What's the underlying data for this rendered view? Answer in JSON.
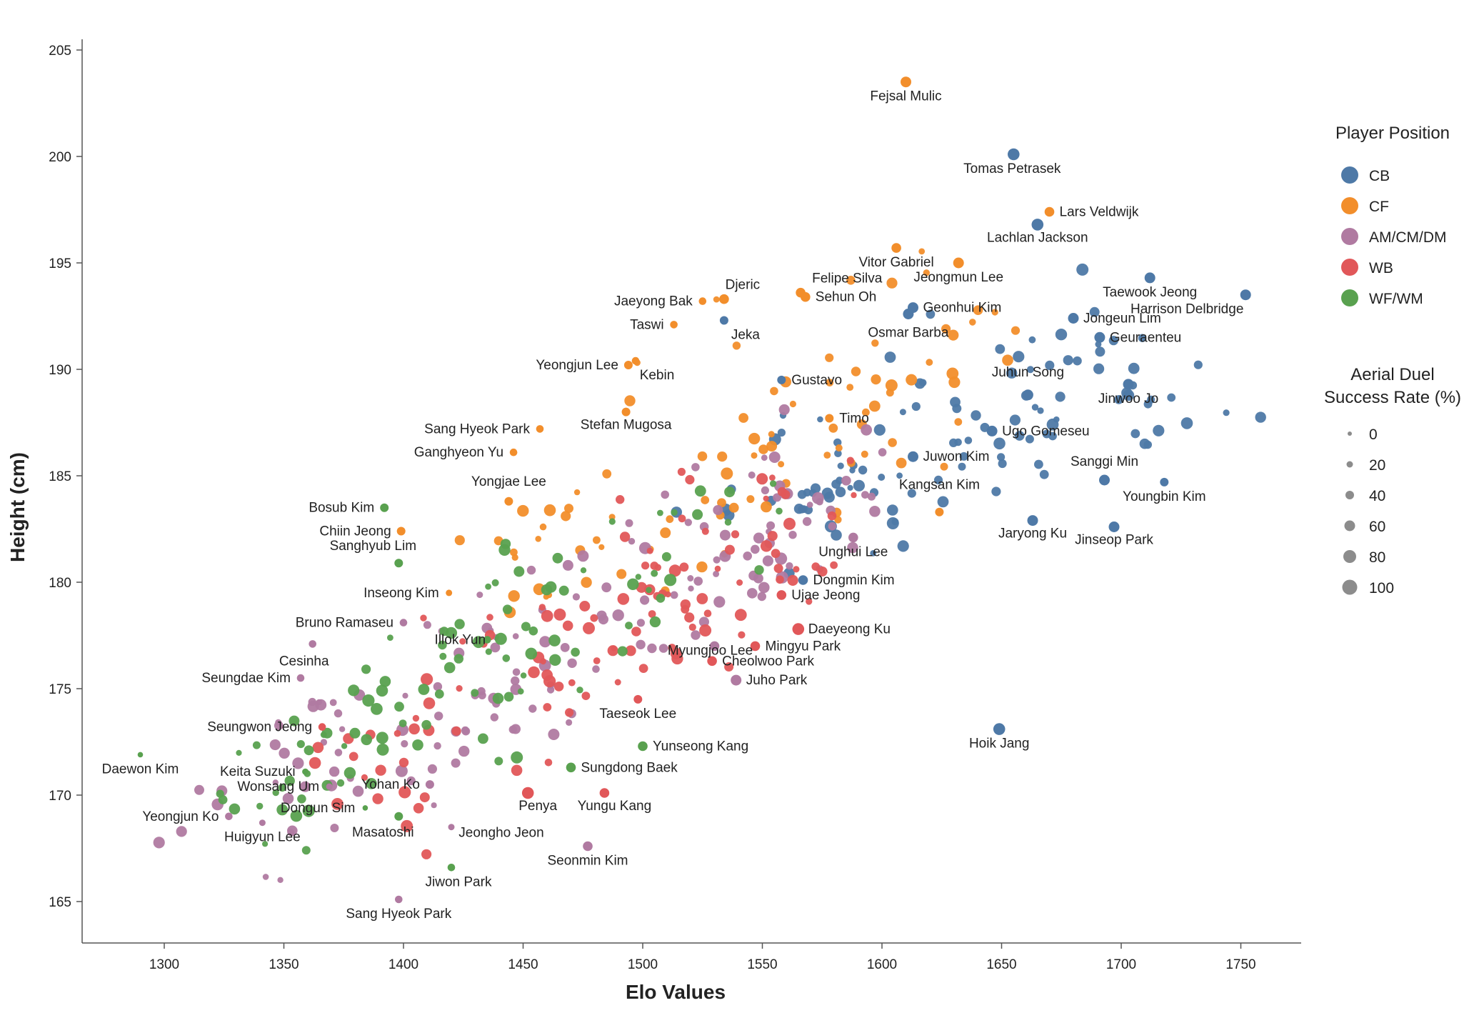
{
  "chart_data": {
    "type": "scatter",
    "xlabel": "Elo Values",
    "ylabel": "Height (cm)",
    "xlim": [
      1265,
      1775
    ],
    "ylim": [
      163,
      207
    ],
    "xticks": [
      1300,
      1350,
      1400,
      1450,
      1500,
      1550,
      1600,
      1650,
      1700,
      1750
    ],
    "yticks": [
      165,
      170,
      175,
      180,
      185,
      190,
      195,
      200,
      205
    ],
    "grid": false,
    "legend_position": "right",
    "position_legend": {
      "title": "Player Position",
      "entries": [
        {
          "name": "CB",
          "color": "#4e79a7"
        },
        {
          "name": "CF",
          "color": "#f28e2b"
        },
        {
          "name": "AM/CM/DM",
          "color": "#b07aa1"
        },
        {
          "name": "WB",
          "color": "#e15759"
        },
        {
          "name": "WF/WM",
          "color": "#59a14f"
        }
      ]
    },
    "size_legend": {
      "title_line1": "Aerial Duel",
      "title_line2": "Success Rate (%)",
      "values": [
        0,
        20,
        40,
        60,
        80,
        100
      ]
    },
    "labeled_points": [
      {
        "name": "Fejsal Mulic",
        "position": "CF",
        "elo": 1610,
        "height": 203.5,
        "aerial": 60
      },
      {
        "name": "Tomas Petrasek",
        "position": "CB",
        "elo": 1655,
        "height": 200.1,
        "aerial": 70
      },
      {
        "name": "Lars Veldwijk",
        "position": "CF",
        "elo": 1670,
        "height": 197.4,
        "aerial": 50
      },
      {
        "name": "Lachlan Jackson",
        "position": "CB",
        "elo": 1665,
        "height": 196.8,
        "aerial": 70
      },
      {
        "name": "Vitor Gabriel",
        "position": "CF",
        "elo": 1606,
        "height": 195.7,
        "aerial": 50
      },
      {
        "name": "Jeongmun Lee",
        "position": "CF",
        "elo": 1632,
        "height": 195.0,
        "aerial": 60
      },
      {
        "name": "Taewook Jeong",
        "position": "CB",
        "elo": 1712,
        "height": 194.3,
        "aerial": 60
      },
      {
        "name": "Harrison Delbridge",
        "position": "CB",
        "elo": 1752,
        "height": 193.5,
        "aerial": 60
      },
      {
        "name": "Felipe Silva",
        "position": "CF",
        "elo": 1566,
        "height": 193.6,
        "aerial": 50
      },
      {
        "name": "Djeric",
        "position": "CF",
        "elo": 1534,
        "height": 193.3,
        "aerial": 50
      },
      {
        "name": "Sehun Oh",
        "position": "CF",
        "elo": 1568,
        "height": 193.4,
        "aerial": 50
      },
      {
        "name": "Jaeyong Bak",
        "position": "CF",
        "elo": 1525,
        "height": 193.2,
        "aerial": 30
      },
      {
        "name": "Geonhui Kim",
        "position": "CB",
        "elo": 1613,
        "height": 192.9,
        "aerial": 60
      },
      {
        "name": "Jongeun Lim",
        "position": "CB",
        "elo": 1680,
        "height": 192.4,
        "aerial": 60
      },
      {
        "name": "Taswi",
        "position": "CF",
        "elo": 1513,
        "height": 192.1,
        "aerial": 30
      },
      {
        "name": "Jeka",
        "position": "CB",
        "elo": 1534,
        "height": 192.3,
        "aerial": 40
      },
      {
        "name": "Osmar Barba",
        "position": "CB",
        "elo": 1611,
        "height": 192.6,
        "aerial": 60
      },
      {
        "name": "Geuraenteu",
        "position": "CB",
        "elo": 1691,
        "height": 191.5,
        "aerial": 60
      },
      {
        "name": "Yeongjun Lee",
        "position": "CF",
        "elo": 1494,
        "height": 190.2,
        "aerial": 40
      },
      {
        "name": "Kebin",
        "position": "CF",
        "elo": 1497,
        "height": 190.4,
        "aerial": 30
      },
      {
        "name": "Gustavo",
        "position": "CB",
        "elo": 1558,
        "height": 189.5,
        "aerial": 40
      },
      {
        "name": "Juhun Song",
        "position": "CB",
        "elo": 1661,
        "height": 188.8,
        "aerial": 60
      },
      {
        "name": "Jinwoo Jo",
        "position": "CB",
        "elo": 1703,
        "height": 189.3,
        "aerial": 60
      },
      {
        "name": "Stefan Mugosa",
        "position": "CF",
        "elo": 1493,
        "height": 188.0,
        "aerial": 40
      },
      {
        "name": "Timo",
        "position": "CF",
        "elo": 1578,
        "height": 187.7,
        "aerial": 40
      },
      {
        "name": "Sang Hyeok Park",
        "position": "CF",
        "elo": 1457,
        "height": 187.2,
        "aerial": 30
      },
      {
        "name": "Ugo Gomeseu",
        "position": "CB",
        "elo": 1646,
        "height": 187.1,
        "aerial": 60
      },
      {
        "name": "Ganghyeon Yu",
        "position": "CF",
        "elo": 1446,
        "height": 186.1,
        "aerial": 30
      },
      {
        "name": "Juwon Kim",
        "position": "CB",
        "elo": 1613,
        "height": 185.9,
        "aerial": 60
      },
      {
        "name": "Sanggi Min",
        "position": "CB",
        "elo": 1693,
        "height": 184.8,
        "aerial": 60
      },
      {
        "name": "Yongjae Lee",
        "position": "CF",
        "elo": 1444,
        "height": 183.8,
        "aerial": 40
      },
      {
        "name": "Youngbin Kim",
        "position": "CB",
        "elo": 1718,
        "height": 184.7,
        "aerial": 40
      },
      {
        "name": "Bosub Kim",
        "position": "WF/WM",
        "elo": 1392,
        "height": 183.5,
        "aerial": 40
      },
      {
        "name": "Kangsan Kim",
        "position": "CF",
        "elo": 1624,
        "height": 183.3,
        "aerial": 40
      },
      {
        "name": "Chiin Jeong",
        "position": "CF",
        "elo": 1399,
        "height": 182.4,
        "aerial": 40
      },
      {
        "name": "Jaryong Ku",
        "position": "CB",
        "elo": 1663,
        "height": 182.9,
        "aerial": 60
      },
      {
        "name": "Jinseop Park",
        "position": "CB",
        "elo": 1697,
        "height": 182.6,
        "aerial": 60
      },
      {
        "name": "Sanghyub Lim",
        "position": "WF/WM",
        "elo": 1398,
        "height": 180.9,
        "aerial": 40
      },
      {
        "name": "Unghui Lee",
        "position": "AM/CM/DM",
        "elo": 1588,
        "height": 182.1,
        "aerial": 50
      },
      {
        "name": "Dongmin Kim",
        "position": "CB",
        "elo": 1567,
        "height": 180.1,
        "aerial": 50
      },
      {
        "name": "Inseong Kim",
        "position": "CF",
        "elo": 1419,
        "height": 179.5,
        "aerial": 20
      },
      {
        "name": "Ujae Jeong",
        "position": "WB",
        "elo": 1558,
        "height": 179.4,
        "aerial": 50
      },
      {
        "name": "Bruno Ramaseu",
        "position": "AM/CM/DM",
        "elo": 1400,
        "height": 178.1,
        "aerial": 30
      },
      {
        "name": "Daeyeong Ku",
        "position": "WB",
        "elo": 1565,
        "height": 177.8,
        "aerial": 70
      },
      {
        "name": "Illok Yun",
        "position": "WF/WM",
        "elo": 1435,
        "height": 177.3,
        "aerial": 30
      },
      {
        "name": "Myungjoo Lee",
        "position": "AM/CM/DM",
        "elo": 1530,
        "height": 177.0,
        "aerial": 50
      },
      {
        "name": "Mingyu Park",
        "position": "WB",
        "elo": 1547,
        "height": 177.0,
        "aerial": 50
      },
      {
        "name": "Cesinha",
        "position": "AM/CM/DM",
        "elo": 1362,
        "height": 177.1,
        "aerial": 30
      },
      {
        "name": "Cheolwoo Park",
        "position": "WB",
        "elo": 1529,
        "height": 176.3,
        "aerial": 50
      },
      {
        "name": "Seungdae Kim",
        "position": "AM/CM/DM",
        "elo": 1357,
        "height": 175.5,
        "aerial": 30
      },
      {
        "name": "Juho Park",
        "position": "AM/CM/DM",
        "elo": 1539,
        "height": 175.4,
        "aerial": 60
      },
      {
        "name": "Taeseok Lee",
        "position": "WB",
        "elo": 1498,
        "height": 174.5,
        "aerial": 40
      },
      {
        "name": "Seungwon Jeong",
        "position": "WB",
        "elo": 1366,
        "height": 173.2,
        "aerial": 30
      },
      {
        "name": "Hoik Jang",
        "position": "CB",
        "elo": 1649,
        "height": 173.1,
        "aerial": 70
      },
      {
        "name": "Yunseong Kang",
        "position": "WF/WM",
        "elo": 1500,
        "height": 172.3,
        "aerial": 50
      },
      {
        "name": "Daewon Kim",
        "position": "WF/WM",
        "elo": 1290,
        "height": 171.9,
        "aerial": 10
      },
      {
        "name": "Sungdong Baek",
        "position": "WF/WM",
        "elo": 1470,
        "height": 171.3,
        "aerial": 50
      },
      {
        "name": "Keita Suzuki",
        "position": "WF/WM",
        "elo": 1359,
        "height": 171.1,
        "aerial": 20
      },
      {
        "name": "Wonsang Um",
        "position": "AM/CM/DM",
        "elo": 1369,
        "height": 170.4,
        "aerial": 20
      },
      {
        "name": "Yohan Ko",
        "position": "AM/CM/DM",
        "elo": 1411,
        "height": 170.5,
        "aerial": 40
      },
      {
        "name": "Penya",
        "position": "WB",
        "elo": 1452,
        "height": 170.1,
        "aerial": 70
      },
      {
        "name": "Yungu Kang",
        "position": "WB",
        "elo": 1484,
        "height": 170.1,
        "aerial": 50
      },
      {
        "name": "Dongun Sim",
        "position": "WF/WM",
        "elo": 1384,
        "height": 169.4,
        "aerial": 10
      },
      {
        "name": "Yeongjun Ko",
        "position": "AM/CM/DM",
        "elo": 1327,
        "height": 169.0,
        "aerial": 30
      },
      {
        "name": "Huigyun Lee",
        "position": "AM/CM/DM",
        "elo": 1341,
        "height": 168.7,
        "aerial": 20
      },
      {
        "name": "Masatoshi",
        "position": "WF/WM",
        "elo": 1398,
        "height": 169.0,
        "aerial": 40
      },
      {
        "name": "Jeongho Jeon",
        "position": "AM/CM/DM",
        "elo": 1420,
        "height": 168.5,
        "aerial": 20
      },
      {
        "name": "Seonmin Kim",
        "position": "AM/CM/DM",
        "elo": 1477,
        "height": 167.6,
        "aerial": 50
      },
      {
        "name": "Jiwon Park",
        "position": "WF/WM",
        "elo": 1420,
        "height": 166.6,
        "aerial": 30
      },
      {
        "name": "Sang Hyeok Park",
        "position": "AM/CM/DM",
        "elo": 1398,
        "height": 165.1,
        "aerial": 30
      }
    ]
  }
}
